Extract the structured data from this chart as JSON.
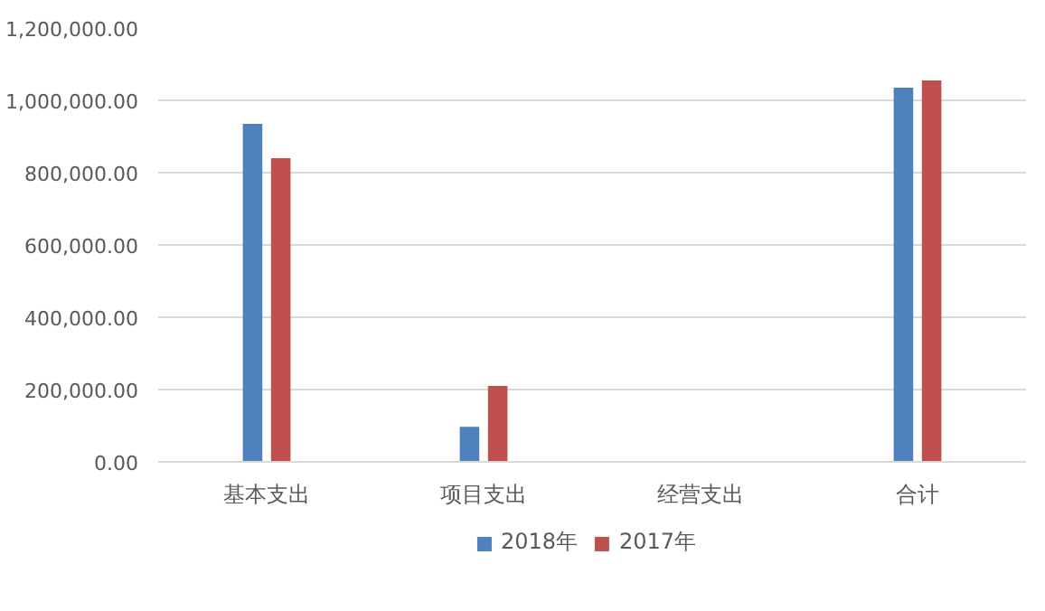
{
  "chart_data": {
    "type": "bar",
    "categories": [
      "基本支出",
      "项目支出",
      "经营支出",
      "合计"
    ],
    "series": [
      {
        "name": "2018年",
        "color": "#4f81bd",
        "values": [
          935000,
          97000,
          null,
          1035000
        ]
      },
      {
        "name": "2017年",
        "color": "#c0504d",
        "values": [
          840000,
          210000,
          null,
          1055000
        ]
      }
    ],
    "ylim": [
      0,
      1200000
    ],
    "yticks": [
      {
        "value": 0,
        "label": "0.00"
      },
      {
        "value": 200000,
        "label": "200,000.00"
      },
      {
        "value": 400000,
        "label": "400,000.00"
      },
      {
        "value": 600000,
        "label": "600,000.00"
      },
      {
        "value": 800000,
        "label": "800,000.00"
      },
      {
        "value": 1000000,
        "label": "1,000,000.00"
      },
      {
        "value": 1200000,
        "label": "1,200,000.00"
      }
    ],
    "grid": "y",
    "legend": "bottom"
  }
}
